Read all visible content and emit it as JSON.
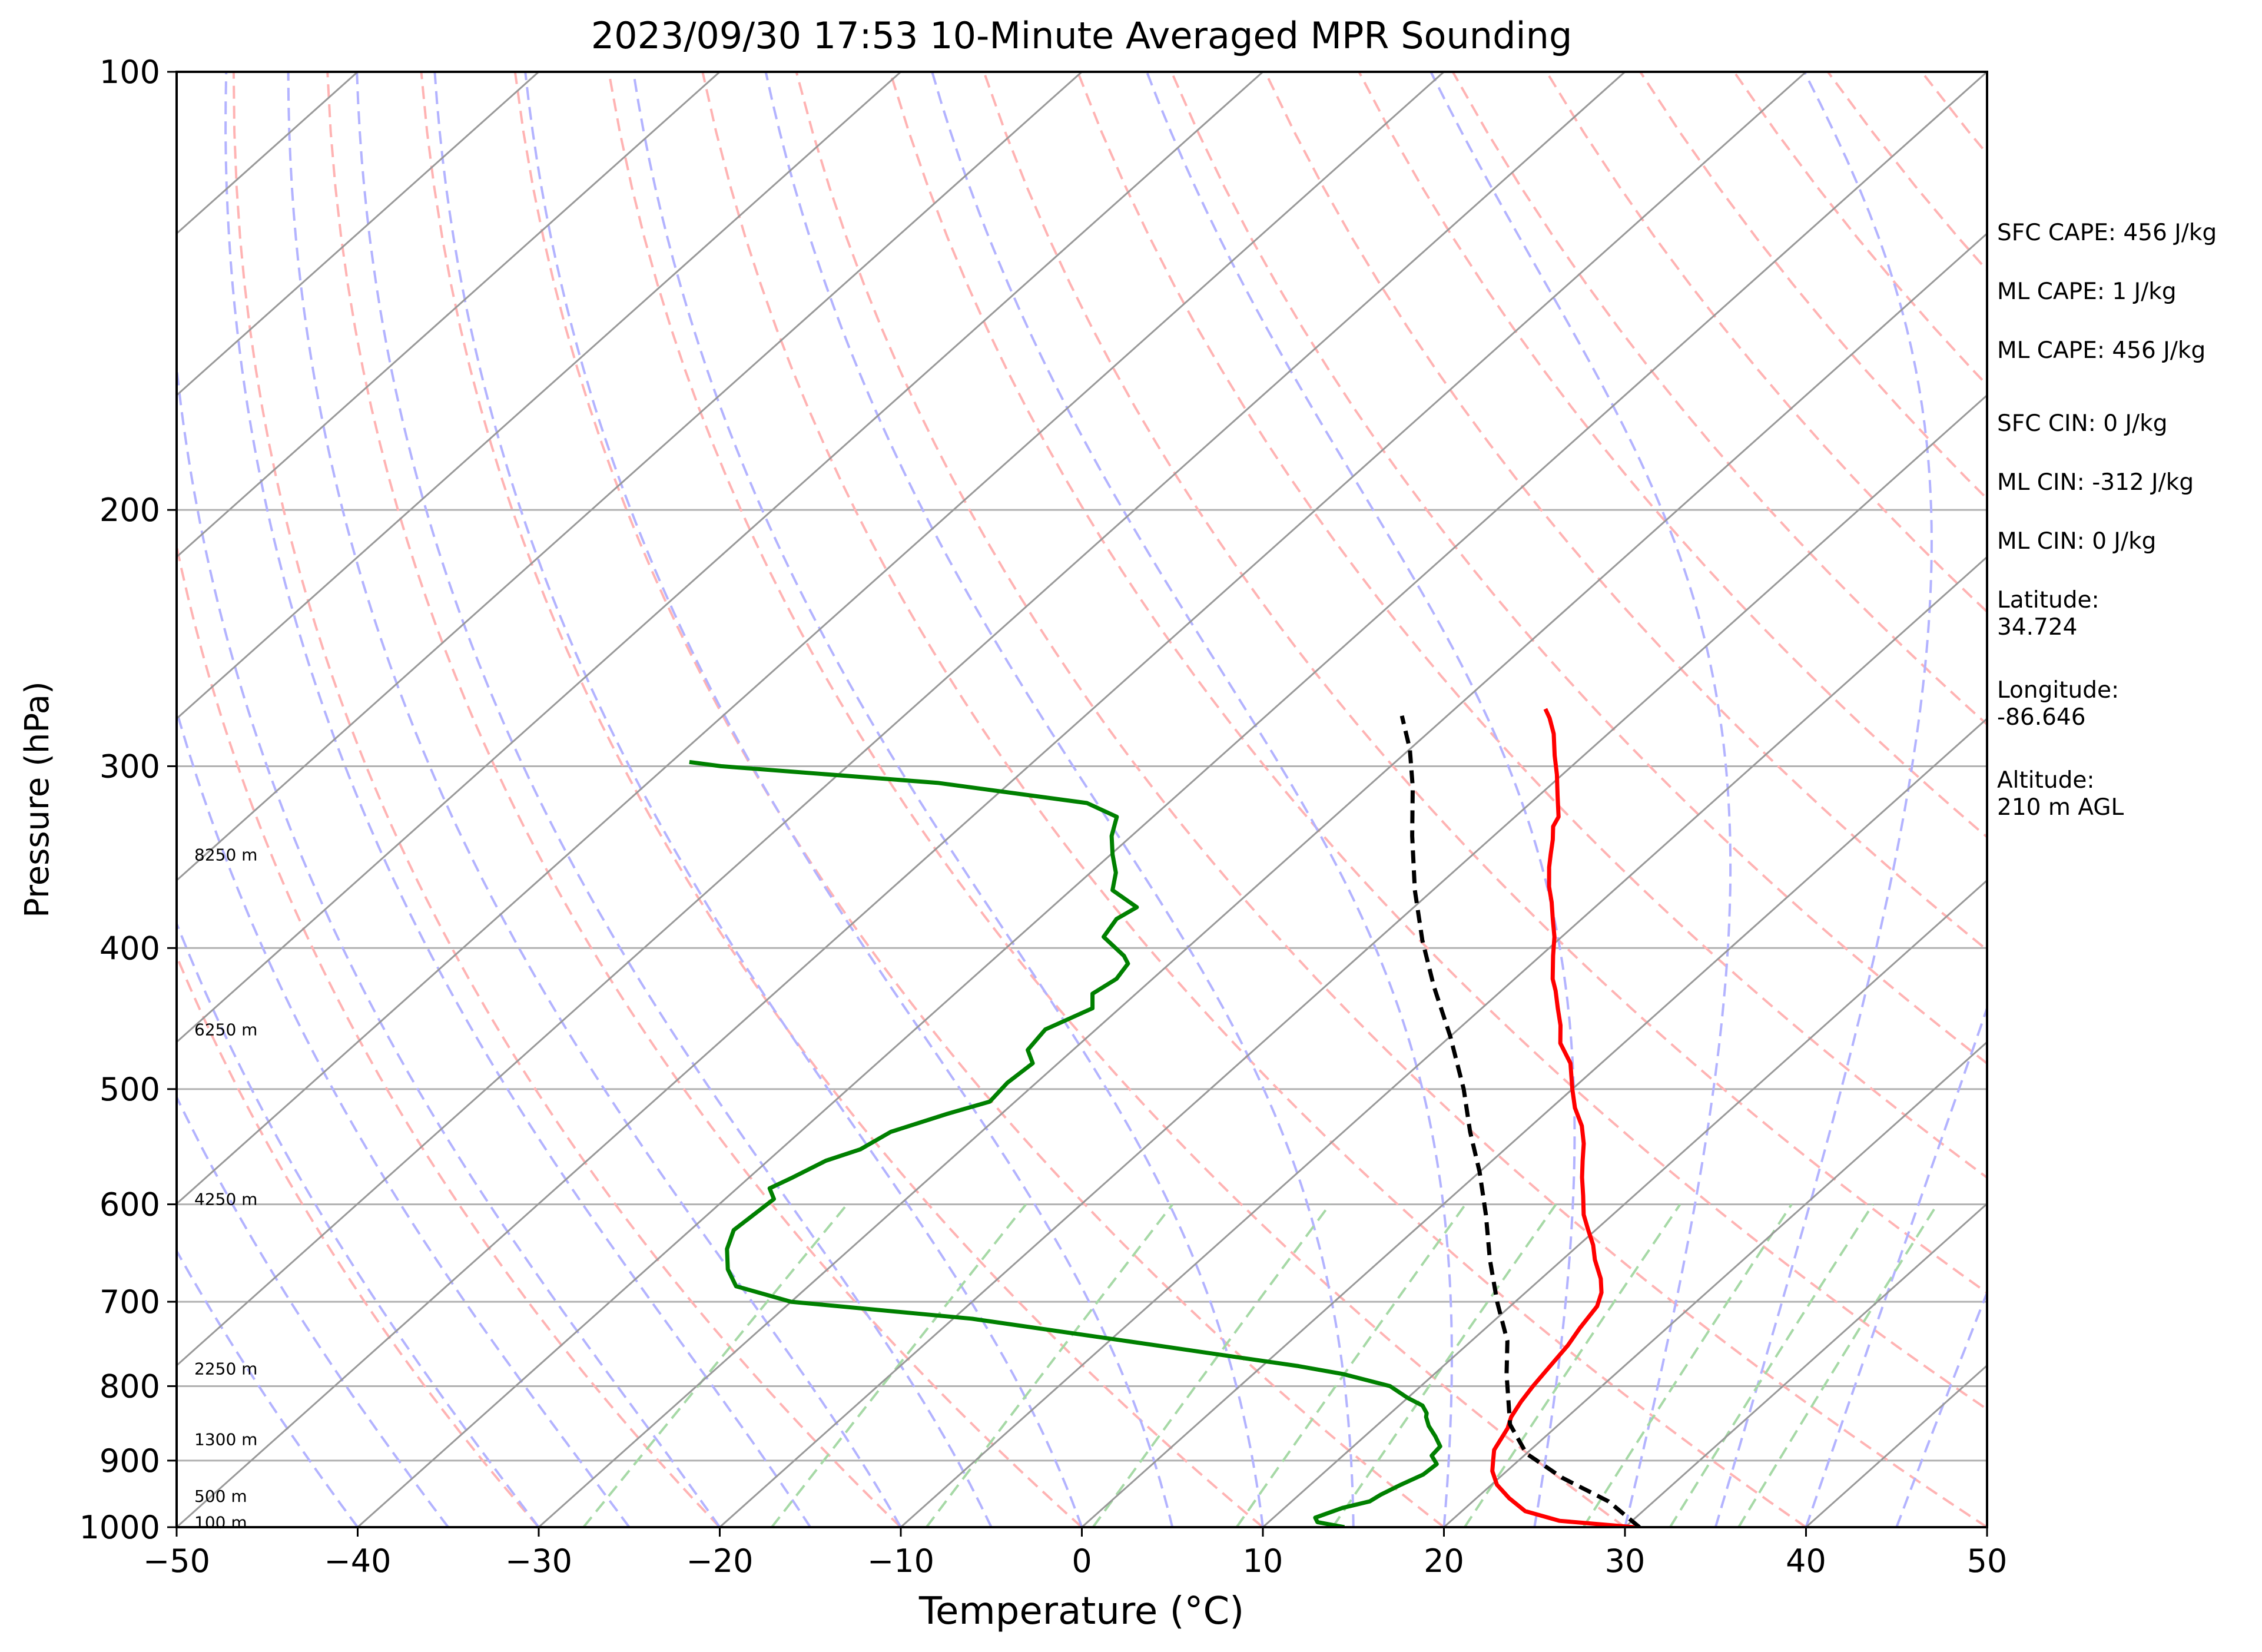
{
  "chart_data": {
    "type": "line",
    "title": "2023/09/30 17:53 10-Minute Averaged MPR Sounding",
    "xlabel": "Temperature (°C)",
    "ylabel": "Pressure (hPa)",
    "xlim": [
      -50,
      50
    ],
    "ylim": [
      1000,
      100
    ],
    "y_scale": "log",
    "x_ticks": [
      "−50",
      "−40",
      "−30",
      "−20",
      "−10",
      "0",
      "10",
      "20",
      "30",
      "40",
      "50"
    ],
    "y_ticks": [
      "100",
      "200",
      "300",
      "400",
      "500",
      "600",
      "700",
      "800",
      "900",
      "1000"
    ],
    "height_labels": [
      {
        "text": "8250 m",
        "p": 345
      },
      {
        "text": "6250 m",
        "p": 455
      },
      {
        "text": "4250 m",
        "p": 595
      },
      {
        "text": "2250 m",
        "p": 778
      },
      {
        "text": "1300 m",
        "p": 870
      },
      {
        "text": "500 m",
        "p": 952
      },
      {
        "text": "100 m",
        "p": 992
      }
    ],
    "annotations": [
      "SFC CAPE: 456 J/kg",
      "ML CAPE: 1 J/kg",
      "ML CAPE: 456 J/kg",
      "SFC CIN: 0 J/kg",
      "ML CIN: -312 J/kg",
      "ML CIN: 0 J/kg",
      "Latitude:\n34.724",
      "Longitude:\n-86.646",
      "Altitude:\n210 m AGL"
    ],
    "skew_per_decade": 90,
    "colors": {
      "temperature": "#ff0000",
      "dewpoint": "#008000",
      "parcel": "#000000",
      "dry_adiabat": "#ffb3b3",
      "moist_adiabat": "#b3b3ff",
      "mixing_ratio": "#a6d9a6",
      "isotherm": "#999999"
    },
    "series": [
      {
        "points": [
          [
            30.5,
            1000
          ],
          [
            26,
            990
          ],
          [
            23.5,
            975
          ],
          [
            21.8,
            955
          ],
          [
            20.3,
            935
          ],
          [
            19.2,
            915
          ],
          [
            18.6,
            900
          ],
          [
            18.0,
            885
          ],
          [
            17.7,
            870
          ],
          [
            17.4,
            855
          ],
          [
            16.9,
            840
          ],
          [
            16.5,
            820
          ],
          [
            16.2,
            800
          ],
          [
            15.9,
            775
          ],
          [
            15.6,
            750
          ],
          [
            15.2,
            730
          ],
          [
            14.8,
            705
          ],
          [
            14.2,
            690
          ],
          [
            13.3,
            675
          ],
          [
            11.8,
            655
          ],
          [
            10.8,
            640
          ],
          [
            9.6,
            625
          ],
          [
            8.4,
            610
          ],
          [
            7.2,
            592
          ],
          [
            6.0,
            575
          ],
          [
            5.0,
            560
          ],
          [
            4.0,
            545
          ],
          [
            2.8,
            530
          ],
          [
            1.3,
            515
          ],
          [
            0.0,
            500
          ],
          [
            -1.7,
            480
          ],
          [
            -3.5,
            465
          ],
          [
            -4.6,
            452
          ],
          [
            -5.8,
            440
          ],
          [
            -7.0,
            428
          ],
          [
            -7.9,
            420
          ],
          [
            -9.3,
            405
          ],
          [
            -10.4,
            393
          ],
          [
            -11.6,
            382
          ],
          [
            -12.7,
            372
          ],
          [
            -13.8,
            363
          ],
          [
            -15.0,
            352
          ],
          [
            -15.7,
            345
          ],
          [
            -16.5,
            337
          ],
          [
            -17.3,
            330
          ],
          [
            -17.6,
            325
          ],
          [
            -19.0,
            314
          ],
          [
            -20.3,
            304
          ],
          [
            -21.6,
            295
          ],
          [
            -23.0,
            285
          ],
          [
            -24.2,
            278
          ],
          [
            -25.0,
            274
          ]
        ]
      },
      {
        "points": [
          [
            14.5,
            1000
          ],
          [
            12.7,
            992
          ],
          [
            12.3,
            985
          ],
          [
            13.2,
            970
          ],
          [
            14.3,
            960
          ],
          [
            14.5,
            950
          ],
          [
            15.0,
            935
          ],
          [
            15.6,
            920
          ],
          [
            15.7,
            905
          ],
          [
            14.9,
            893
          ],
          [
            14.8,
            880
          ],
          [
            13.9,
            866
          ],
          [
            12.9,
            852
          ],
          [
            12.2,
            840
          ],
          [
            12.0,
            835
          ],
          [
            11.3,
            825
          ],
          [
            10.0,
            815
          ],
          [
            8.3,
            800
          ],
          [
            5.0,
            785
          ],
          [
            2.0,
            775
          ],
          [
            -9.0,
            745
          ],
          [
            -19.0,
            719
          ],
          [
            -30.0,
            700
          ],
          [
            -34.0,
            683
          ],
          [
            -35.5,
            665
          ],
          [
            -36.8,
            644
          ],
          [
            -37.6,
            625
          ],
          [
            -37.4,
            605
          ],
          [
            -37.3,
            595
          ],
          [
            -38.2,
            585
          ],
          [
            -37.6,
            575
          ],
          [
            -36.8,
            560
          ],
          [
            -35.6,
            550
          ],
          [
            -35.0,
            535
          ],
          [
            -33.0,
            520
          ],
          [
            -31.4,
            510
          ],
          [
            -31.6,
            495
          ],
          [
            -31.4,
            480
          ],
          [
            -32.5,
            470
          ],
          [
            -32.8,
            455
          ],
          [
            -31.5,
            440
          ],
          [
            -32.4,
            430
          ],
          [
            -32.0,
            420
          ],
          [
            -32.3,
            410
          ],
          [
            -33.0,
            405
          ],
          [
            -35.3,
            393
          ],
          [
            -35.7,
            382
          ],
          [
            -35.3,
            375
          ],
          [
            -37.7,
            365
          ],
          [
            -38.6,
            355
          ],
          [
            -39.9,
            345
          ],
          [
            -41.1,
            335
          ],
          [
            -42.0,
            325
          ],
          [
            -44.5,
            318
          ],
          [
            -54.0,
            308
          ],
          [
            -67.0,
            300
          ],
          [
            -69.0,
            298
          ]
        ]
      },
      {
        "points": [
          [
            30.8,
            1000
          ],
          [
            27.5,
            960
          ],
          [
            23.5,
            925
          ],
          [
            20.0,
            890
          ],
          [
            17.3,
            850
          ],
          [
            15.2,
            808
          ],
          [
            14.0,
            785
          ],
          [
            12.0,
            745
          ],
          [
            9.0,
            700
          ],
          [
            6.0,
            655
          ],
          [
            3.0,
            610
          ],
          [
            0.0,
            570
          ],
          [
            -3.0,
            535
          ],
          [
            -6.0,
            500
          ],
          [
            -10.0,
            460
          ],
          [
            -14.0,
            425
          ],
          [
            -17.5,
            395
          ],
          [
            -21.0,
            365
          ],
          [
            -24.5,
            335
          ],
          [
            -27.5,
            310
          ],
          [
            -30.0,
            292
          ],
          [
            -32.5,
            277
          ]
        ]
      }
    ]
  }
}
